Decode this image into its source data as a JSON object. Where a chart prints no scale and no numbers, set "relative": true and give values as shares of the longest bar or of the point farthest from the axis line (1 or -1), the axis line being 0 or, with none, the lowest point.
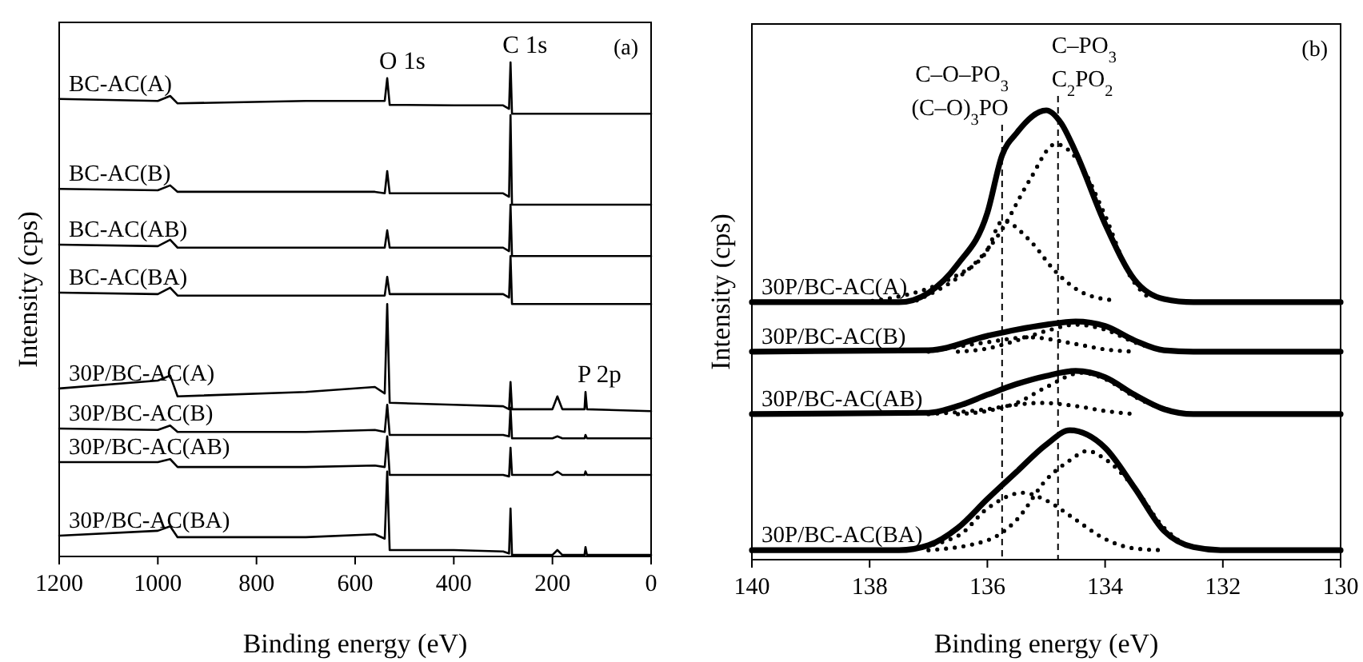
{
  "chart_data": [
    {
      "type": "line",
      "relative": true,
      "tick_labels": "x",
      "xlabel": "Binding energy (eV)",
      "ylabel": "Intensity (cps)",
      "xlim": [
        1200,
        0
      ],
      "xticks": [
        1200,
        1000,
        800,
        600,
        400,
        200,
        0
      ],
      "annotations": [
        {
          "text": "O 1s",
          "x": 535,
          "y": 0.968
        },
        {
          "text": "C 1s",
          "x": 285,
          "y": 1
        },
        {
          "text": "P 2p",
          "x": 133,
          "y": 0.333
        },
        "(a)"
      ],
      "series": [
        {
          "name": "BC-AC(A)",
          "color": "#000000",
          "x": [
            1200,
            1000,
            975,
            960,
            700,
            560,
            540,
            535,
            530,
            400,
            300,
            288,
            285,
            282,
            200,
            190,
            180,
            135,
            133,
            130,
            0
          ],
          "values": [
            0.926,
            0.922,
            0.932,
            0.917,
            0.922,
            0.922,
            0.922,
            0.968,
            0.914,
            0.913,
            0.913,
            0.906,
            1,
            0.896,
            0.896,
            0.896,
            0.896,
            0.896,
            0.896,
            0.896,
            0.896
          ]
        },
        {
          "name": "BC-AC(B)",
          "color": "#000000",
          "x": [
            1200,
            1000,
            975,
            960,
            700,
            560,
            540,
            535,
            530,
            400,
            300,
            288,
            285,
            282,
            200,
            190,
            180,
            135,
            133,
            130,
            0
          ],
          "values": [
            0.744,
            0.741,
            0.751,
            0.738,
            0.738,
            0.738,
            0.735,
            0.78,
            0.735,
            0.735,
            0.735,
            0.728,
            0.893,
            0.712,
            0.712,
            0.712,
            0.712,
            0.712,
            0.712,
            0.712,
            0.712
          ]
        },
        {
          "name": "BC-AC(AB)",
          "color": "#000000",
          "x": [
            1200,
            1000,
            975,
            960,
            700,
            560,
            540,
            535,
            530,
            400,
            300,
            288,
            285,
            282,
            200,
            190,
            180,
            135,
            133,
            130,
            0
          ],
          "values": [
            0.631,
            0.628,
            0.641,
            0.625,
            0.625,
            0.625,
            0.625,
            0.66,
            0.625,
            0.625,
            0.625,
            0.618,
            0.712,
            0.608,
            0.608,
            0.608,
            0.608,
            0.608,
            0.608,
            0.608,
            0.608
          ]
        },
        {
          "name": "BC-AC(BA)",
          "color": "#000000",
          "x": [
            1200,
            1000,
            975,
            960,
            700,
            560,
            540,
            535,
            530,
            400,
            300,
            288,
            285,
            282,
            200,
            190,
            180,
            135,
            133,
            130,
            0
          ],
          "values": [
            0.534,
            0.531,
            0.544,
            0.528,
            0.528,
            0.528,
            0.528,
            0.566,
            0.531,
            0.531,
            0.531,
            0.524,
            0.608,
            0.511,
            0.511,
            0.511,
            0.511,
            0.511,
            0.511,
            0.511,
            0.511
          ]
        },
        {
          "name": "30P/BC-AC(A)",
          "color": "#000000",
          "x": [
            1200,
            1000,
            975,
            960,
            700,
            560,
            540,
            535,
            530,
            400,
            300,
            288,
            285,
            282,
            200,
            190,
            180,
            135,
            133,
            130,
            0
          ],
          "values": [
            0.34,
            0.356,
            0.366,
            0.324,
            0.333,
            0.343,
            0.33,
            0.511,
            0.311,
            0.307,
            0.304,
            0.298,
            0.353,
            0.298,
            0.298,
            0.324,
            0.298,
            0.298,
            0.333,
            0.298,
            0.294
          ]
        },
        {
          "name": "30P/BC-AC(B)",
          "color": "#000000",
          "x": [
            1200,
            1000,
            975,
            960,
            700,
            560,
            540,
            535,
            530,
            400,
            300,
            288,
            285,
            282,
            200,
            190,
            180,
            135,
            133,
            130,
            0
          ],
          "values": [
            0.259,
            0.256,
            0.265,
            0.252,
            0.252,
            0.256,
            0.252,
            0.307,
            0.246,
            0.246,
            0.246,
            0.243,
            0.301,
            0.239,
            0.239,
            0.243,
            0.239,
            0.239,
            0.246,
            0.239,
            0.239
          ]
        },
        {
          "name": "30P/BC-AC(AB)",
          "color": "#000000",
          "x": [
            1200,
            1000,
            975,
            960,
            700,
            560,
            540,
            535,
            530,
            400,
            300,
            288,
            285,
            282,
            200,
            190,
            180,
            135,
            133,
            130,
            0
          ],
          "values": [
            0.191,
            0.191,
            0.197,
            0.181,
            0.181,
            0.184,
            0.181,
            0.243,
            0.165,
            0.165,
            0.165,
            0.162,
            0.22,
            0.165,
            0.165,
            0.172,
            0.165,
            0.165,
            0.172,
            0.165,
            0.165
          ]
        },
        {
          "name": "30P/BC-AC(BA)",
          "color": "#000000",
          "x": [
            1200,
            1000,
            975,
            960,
            700,
            560,
            540,
            535,
            530,
            400,
            300,
            288,
            285,
            282,
            200,
            190,
            180,
            135,
            133,
            130,
            0
          ],
          "values": [
            0.042,
            0.052,
            0.061,
            0.039,
            0.039,
            0.045,
            0.036,
            0.172,
            0.013,
            0.013,
            0.01,
            0.006,
            0.097,
            0.003,
            0.003,
            0.013,
            0.003,
            0.003,
            0.019,
            0.003,
            0.003
          ]
        }
      ]
    },
    {
      "type": "line",
      "relative": true,
      "tick_labels": "x",
      "xlabel": "Binding energy (eV)",
      "ylabel": "Intensity (cps)",
      "xlim": [
        140,
        130
      ],
      "xticks": [
        140,
        138,
        136,
        134,
        132,
        130
      ],
      "annotations": [
        "(b)"
      ],
      "ref_lines": [
        {
          "axis": "x",
          "value": 135.75,
          "label": "C–O–PO$_{3}$\n(C–O)$_{3}$PO",
          "line_style": "dashed",
          "color": "#000000"
        },
        {
          "axis": "x",
          "value": 134.8,
          "label": "C–PO$_{3}$\nC$_{2}$PO$_{2}$",
          "line_style": "dashed",
          "color": "#000000"
        }
      ],
      "series": [
        {
          "name": "30P/BC-AC(A)",
          "color": "#000000",
          "line_style": "solid",
          "x": [
            140,
            137.5,
            137,
            136.5,
            136,
            135.75,
            135.5,
            135,
            134.75,
            134.5,
            134,
            133.5,
            133,
            132.5,
            130
          ],
          "values": [
            0.573,
            0.573,
            0.594,
            0.658,
            0.772,
            0.9,
            0.95,
            1,
            0.972,
            0.907,
            0.747,
            0.623,
            0.58,
            0.573,
            0.573
          ]
        },
        {
          "color": "#000000",
          "line_style": "dotted",
          "x": [
            138.1,
            136.56,
            136.01,
            135.74,
            135.29,
            134.84,
            134.38,
            133.84
          ],
          "values": [
            0.573,
            0.63,
            0.687,
            0.754,
            0.712,
            0.641,
            0.594,
            0.577
          ]
        },
        {
          "color": "#000000",
          "line_style": "dotted",
          "x": [
            137.2,
            135.74,
            135.29,
            134.84,
            134.47,
            134.02,
            133.57,
            133.2
          ],
          "values": [
            0.577,
            0.737,
            0.843,
            0.925,
            0.89,
            0.772,
            0.63,
            0.577
          ]
        },
        {
          "name": "30P/BC-AC(B)",
          "color": "#000000",
          "line_style": "solid",
          "x": [
            140,
            137,
            136,
            135.5,
            135,
            134.5,
            134,
            133.5,
            133,
            132.5,
            130
          ],
          "values": [
            0.463,
            0.466,
            0.498,
            0.512,
            0.523,
            0.53,
            0.52,
            0.488,
            0.466,
            0.463,
            0.463
          ]
        },
        {
          "color": "#000000",
          "line_style": "dotted",
          "x": [
            137,
            136,
            135.3,
            134.5,
            134,
            133.5
          ],
          "values": [
            0.463,
            0.484,
            0.495,
            0.48,
            0.468,
            0.463
          ]
        },
        {
          "color": "#000000",
          "line_style": "dotted",
          "x": [
            136.5,
            136,
            135.5,
            135,
            134.5,
            134,
            133.5,
            133,
            132.5
          ],
          "values": [
            0.463,
            0.47,
            0.488,
            0.509,
            0.523,
            0.512,
            0.484,
            0.466,
            0.463
          ]
        },
        {
          "name": "30P/BC-AC(AB)",
          "color": "#000000",
          "line_style": "solid",
          "x": [
            140,
            137,
            136.5,
            136,
            135.5,
            135,
            134.5,
            134,
            133.5,
            133,
            132.5,
            130
          ],
          "values": [
            0.324,
            0.327,
            0.342,
            0.367,
            0.391,
            0.409,
            0.42,
            0.406,
            0.367,
            0.335,
            0.324,
            0.324
          ]
        },
        {
          "color": "#000000",
          "line_style": "dotted",
          "x": [
            137,
            136,
            135.5,
            135.1,
            134.5,
            134,
            133.5
          ],
          "values": [
            0.324,
            0.335,
            0.345,
            0.349,
            0.342,
            0.331,
            0.324
          ]
        },
        {
          "color": "#000000",
          "line_style": "dotted",
          "x": [
            136.5,
            136,
            135.5,
            135,
            134.4,
            134,
            133.5,
            133,
            132.5
          ],
          "values": [
            0.324,
            0.331,
            0.349,
            0.384,
            0.416,
            0.402,
            0.363,
            0.335,
            0.324
          ]
        },
        {
          "name": "30P/BC-AC(BA)",
          "color": "#000000",
          "line_style": "solid",
          "x": [
            140,
            137.5,
            137,
            136.5,
            136,
            135.5,
            135,
            134.6,
            134,
            133.5,
            133,
            132.5,
            132,
            130
          ],
          "values": [
            0.021,
            0.021,
            0.032,
            0.071,
            0.135,
            0.196,
            0.256,
            0.288,
            0.249,
            0.16,
            0.064,
            0.028,
            0.021,
            0.021
          ]
        },
        {
          "color": "#000000",
          "line_style": "dotted",
          "x": [
            137.5,
            136.5,
            136,
            135.4,
            135,
            134.5,
            134,
            133.5,
            133
          ],
          "values": [
            0.021,
            0.053,
            0.114,
            0.149,
            0.132,
            0.089,
            0.046,
            0.025,
            0.021
          ]
        },
        {
          "color": "#000000",
          "line_style": "dotted",
          "x": [
            137,
            136,
            135.5,
            135,
            134.6,
            134.3,
            134,
            133.5,
            133,
            132.5,
            132
          ],
          "values": [
            0.021,
            0.043,
            0.089,
            0.178,
            0.221,
            0.242,
            0.224,
            0.16,
            0.071,
            0.028,
            0.021
          ]
        }
      ]
    }
  ]
}
